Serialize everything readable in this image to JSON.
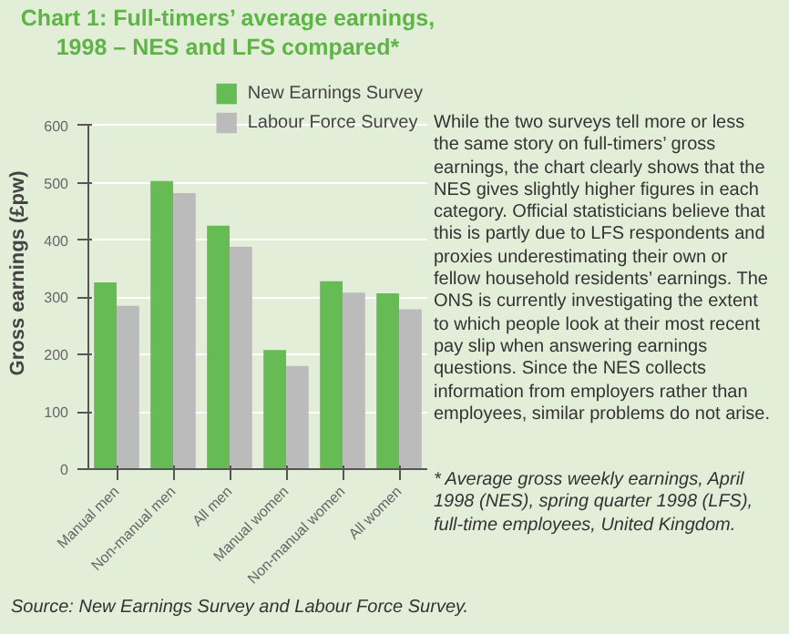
{
  "chart_data": {
    "type": "bar",
    "title": "Chart 1: Full-timers’ average earnings, 1998 – NES and LFS compared*",
    "ylabel": "Gross earnings (£pw)",
    "categories": [
      "Manual men",
      "Non-manual men",
      "All men",
      "Manual women",
      "Non-manual women",
      "All women"
    ],
    "series": [
      {
        "name": "New Earnings Survey",
        "color": "#66bb55",
        "values": [
          326,
          503,
          425,
          208,
          328,
          307
        ]
      },
      {
        "name": "Labour Force Survey",
        "color": "#bbbbbb",
        "values": [
          285,
          482,
          388,
          180,
          308,
          279
        ]
      }
    ],
    "ylim": [
      0,
      600
    ],
    "yticks": [
      0,
      100,
      200,
      300,
      400,
      500,
      600
    ],
    "grid": "y",
    "legend": "top",
    "annotations": [
      "While the two surveys tell more or less the same story on full-timers’ gross earnings, the chart clearly shows that the NES gives slightly higher figures in each category. Official statisticians believe that this is partly due to LFS respondents and proxies underestimating their own or fellow household residents’ earnings. The ONS is currently investigating the extent to which people look at their most recent pay slip when answering earnings questions. Since the NES collects information from employers rather than employees, similar problems do not arise.",
      "* Average gross weekly earnings, April 1998 (NES), spring quarter 1998 (LFS), full-time employees, United Kingdom.",
      "Source: New Earnings Survey and Labour Force Survey."
    ]
  }
}
